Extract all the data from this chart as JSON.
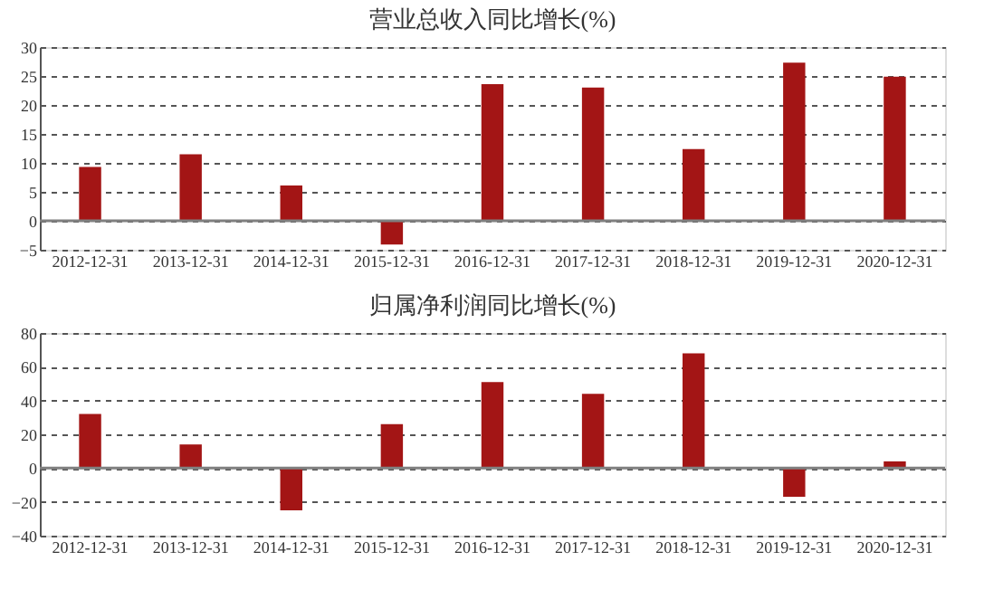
{
  "chart_data": [
    {
      "type": "bar",
      "title": "营业总收入同比增长(%)",
      "categories": [
        "2012-12-31",
        "2013-12-31",
        "2014-12-31",
        "2015-12-31",
        "2016-12-31",
        "2017-12-31",
        "2018-12-31",
        "2019-12-31",
        "2020-12-31"
      ],
      "series": [
        {
          "color": "#a31515",
          "values": [
            9.3,
            11.5,
            6.1,
            -4.1,
            23.6,
            23.0,
            12.4,
            27.3,
            24.9
          ]
        }
      ],
      "ylim": [
        -5,
        30
      ],
      "yticks": [
        -5,
        0,
        5,
        10,
        15,
        20,
        25,
        30
      ],
      "grid": "y",
      "legend": false,
      "ref_lines": [
        {
          "axis": "y",
          "value": 0,
          "color": "#808080",
          "line_style": "solid"
        }
      ]
    },
    {
      "type": "bar",
      "title": "归属净利润同比增长(%)",
      "categories": [
        "2012-12-31",
        "2013-12-31",
        "2014-12-31",
        "2015-12-31",
        "2016-12-31",
        "2017-12-31",
        "2018-12-31",
        "2019-12-31",
        "2020-12-31"
      ],
      "series": [
        {
          "color": "#a31515",
          "values": [
            32,
            14,
            -25,
            26,
            51,
            44,
            68,
            -17,
            4
          ]
        }
      ],
      "ylim": [
        -40,
        80
      ],
      "yticks": [
        -40,
        -20,
        0,
        20,
        40,
        60,
        80
      ],
      "grid": "y",
      "legend": false,
      "ref_lines": [
        {
          "axis": "y",
          "value": 0,
          "color": "#808080",
          "line_style": "solid"
        }
      ]
    }
  ]
}
